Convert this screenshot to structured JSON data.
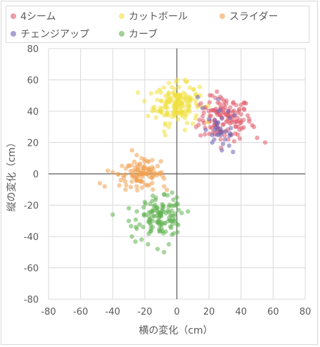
{
  "chart_data": {
    "type": "scatter",
    "title": "",
    "xlabel": "横の変化（cm）",
    "ylabel": "縦の変化（cm）",
    "xlim": [
      -80,
      80
    ],
    "ylim": [
      -80,
      80
    ],
    "x_ticks": [
      "-80",
      "-60",
      "-40",
      "-20",
      "0",
      "20",
      "40",
      "60",
      "80"
    ],
    "y_ticks": [
      "80",
      "60",
      "40",
      "20",
      "0",
      "-20",
      "-40",
      "-60",
      "-80"
    ],
    "grid": true,
    "legend": "top",
    "series": [
      {
        "name": "4シーム",
        "color": "#e05a6a",
        "center": [
          30,
          35
        ],
        "spread": [
          8,
          7
        ],
        "extents": [
          [
            12,
            30
          ],
          [
            18,
            42
          ],
          [
            22,
            50
          ],
          [
            28,
            48
          ],
          [
            35,
            45
          ],
          [
            40,
            38
          ],
          [
            45,
            35
          ],
          [
            50,
            23
          ],
          [
            55,
            20
          ],
          [
            48,
            30
          ],
          [
            38,
            25
          ],
          [
            32,
            22
          ],
          [
            25,
            28
          ],
          [
            20,
            40
          ],
          [
            15,
            45
          ]
        ]
      },
      {
        "name": "カットボール",
        "color": "#f0e040",
        "center": [
          0,
          45
        ],
        "spread": [
          7,
          6
        ],
        "extents": [
          [
            -12,
            40
          ],
          [
            -15,
            42
          ],
          [
            -18,
            37
          ],
          [
            -10,
            52
          ],
          [
            -8,
            55
          ],
          [
            -5,
            58
          ],
          [
            0,
            60
          ],
          [
            5,
            60
          ],
          [
            8,
            55
          ],
          [
            12,
            50
          ],
          [
            10,
            32
          ],
          [
            5,
            28
          ],
          [
            -5,
            30
          ],
          [
            -8,
            27
          ],
          [
            -13,
            36
          ]
        ]
      },
      {
        "name": "スライダー",
        "color": "#f0a050",
        "center": [
          -22,
          0
        ],
        "spread": [
          7,
          4
        ],
        "extents": [
          [
            -48,
            -6
          ],
          [
            -45,
            -8
          ],
          [
            -43,
            2
          ],
          [
            -40,
            1
          ],
          [
            -35,
            -4
          ],
          [
            -30,
            5
          ],
          [
            -28,
            15
          ],
          [
            -25,
            12
          ],
          [
            -22,
            10
          ],
          [
            -18,
            8
          ],
          [
            -12,
            5
          ],
          [
            -10,
            8
          ],
          [
            -8,
            -3
          ],
          [
            -8,
            -8
          ],
          [
            -15,
            -10
          ],
          [
            -25,
            -8
          ],
          [
            -32,
            -10
          ]
        ]
      },
      {
        "name": "チェンジアップ",
        "color": "#7060b0",
        "center": [
          28,
          28
        ],
        "spread": [
          5,
          6
        ],
        "extents": [
          [
            18,
            28
          ],
          [
            20,
            35
          ],
          [
            22,
            20
          ],
          [
            25,
            25
          ],
          [
            28,
            15
          ],
          [
            30,
            22
          ],
          [
            33,
            26
          ],
          [
            35,
            14
          ],
          [
            32,
            40
          ],
          [
            26,
            40
          ],
          [
            16,
            42
          ],
          [
            13,
            49
          ]
        ]
      },
      {
        "name": "カーブ",
        "color": "#60b050",
        "center": [
          -10,
          -28
        ],
        "spread": [
          7,
          6
        ],
        "extents": [
          [
            -40,
            -26
          ],
          [
            -30,
            -30
          ],
          [
            -28,
            -40
          ],
          [
            -25,
            -35
          ],
          [
            -22,
            -42
          ],
          [
            -18,
            -45
          ],
          [
            -12,
            -48
          ],
          [
            -8,
            -50
          ],
          [
            -5,
            -45
          ],
          [
            -2,
            -38
          ],
          [
            0,
            -32
          ],
          [
            3,
            -25
          ],
          [
            0,
            -15
          ],
          [
            -3,
            -12
          ],
          [
            -8,
            -13
          ],
          [
            -15,
            -14
          ],
          [
            -20,
            -18
          ],
          [
            -25,
            -24
          ]
        ]
      }
    ]
  }
}
